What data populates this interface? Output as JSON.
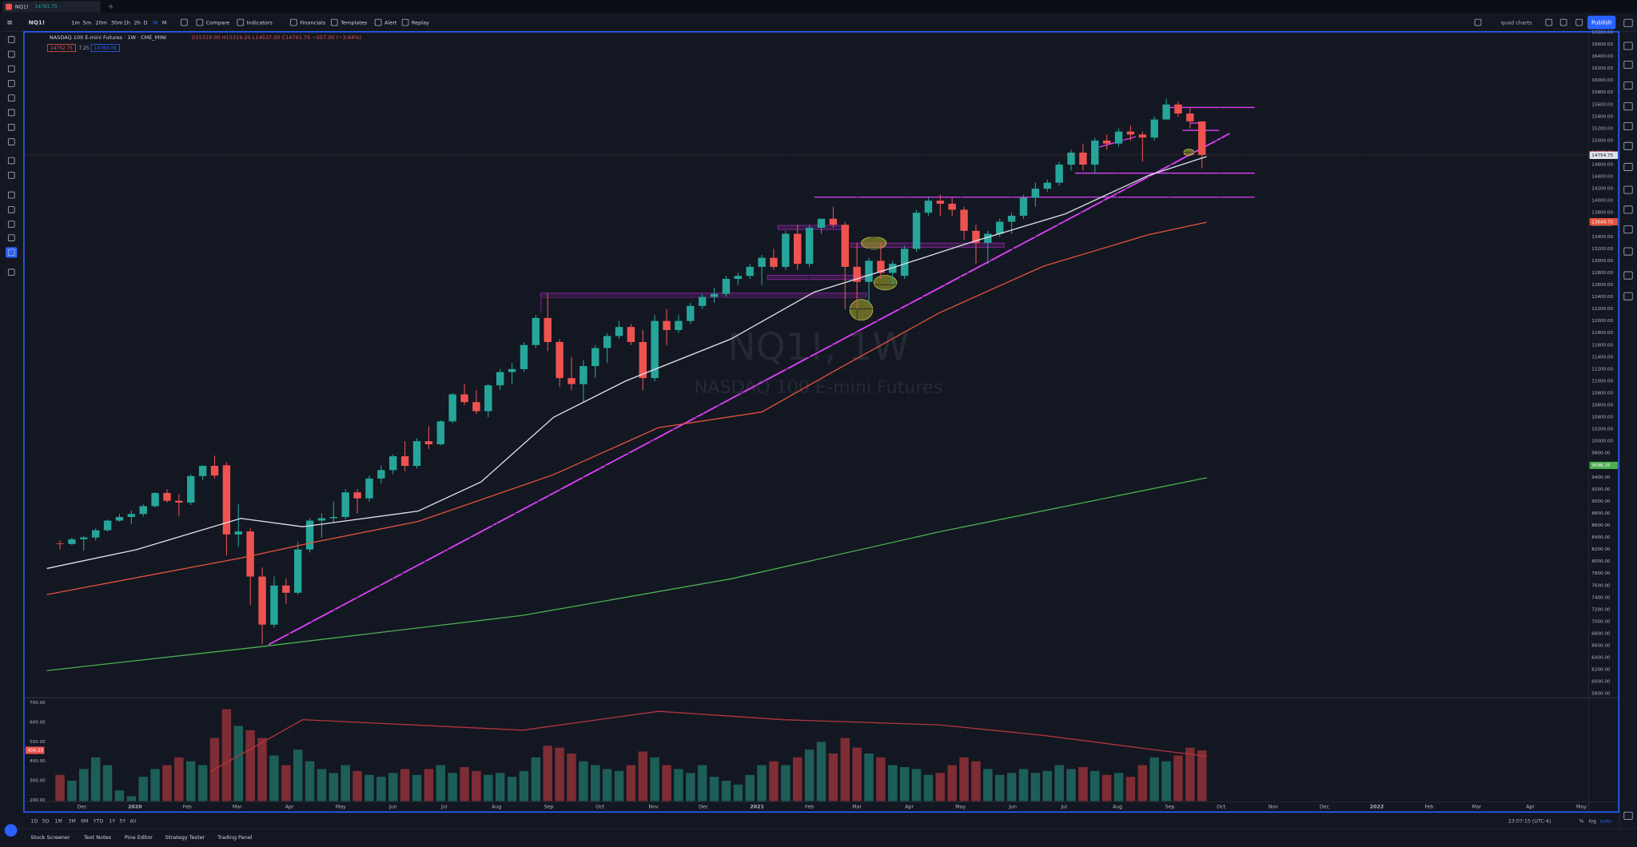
{
  "tab": {
    "symbol": "NQ1!",
    "price": "14761.75"
  },
  "toolbar": {
    "symbol": "NQ1!",
    "intervals": [
      "1m",
      "5m",
      "20m",
      "30m",
      "1h",
      "2h",
      "D",
      "W",
      "M"
    ],
    "active_interval": 7,
    "buttons": [
      "Compare",
      "Indicators",
      "Financials",
      "Templates",
      "Alert",
      "Replay"
    ],
    "layout": "quad charts",
    "publish": "Publish"
  },
  "chart": {
    "type": "candlestick",
    "legend": {
      "title": "NASDAQ 100 E-mini Futures · 1W · CME_MINI",
      "ohlc": "O15319.00 H15319.25 L14537.00 C14761.75 −557.00 (−3.64%)",
      "bid": "14752.75",
      "spread": "7.25",
      "ask": "14760.00"
    },
    "watermark": [
      "NQ1!, 1W",
      "NASDAQ 100 E-mini Futures"
    ],
    "up_color": "#26a69a",
    "down_color": "#ef5350",
    "candles": [
      [
        8300,
        8350,
        8200,
        8290
      ],
      [
        8290,
        8400,
        8270,
        8370
      ],
      [
        8370,
        8420,
        8180,
        8400
      ],
      [
        8400,
        8550,
        8350,
        8520
      ],
      [
        8520,
        8700,
        8500,
        8680
      ],
      [
        8680,
        8790,
        8660,
        8740
      ],
      [
        8740,
        8850,
        8620,
        8790
      ],
      [
        8790,
        8950,
        8750,
        8920
      ],
      [
        8920,
        9150,
        8900,
        9140
      ],
      [
        9140,
        9200,
        8980,
        9010
      ],
      [
        9010,
        9120,
        8750,
        8980
      ],
      [
        8980,
        9450,
        8940,
        9420
      ],
      [
        9420,
        9600,
        9350,
        9590
      ],
      [
        9590,
        9760,
        9380,
        9430
      ],
      [
        9600,
        9650,
        8100,
        8450
      ],
      [
        8450,
        8950,
        8250,
        8500
      ],
      [
        8500,
        8550,
        7280,
        7750
      ],
      [
        7750,
        7900,
        6630,
        6950
      ],
      [
        6950,
        7750,
        6900,
        7600
      ],
      [
        7600,
        7720,
        7300,
        7480
      ],
      [
        7480,
        8330,
        7450,
        8200
      ],
      [
        8200,
        8720,
        8150,
        8680
      ],
      [
        8680,
        8800,
        8400,
        8720
      ],
      [
        8720,
        9000,
        8650,
        8740
      ],
      [
        8740,
        9200,
        8700,
        9150
      ],
      [
        9150,
        9200,
        8800,
        9050
      ],
      [
        9050,
        9430,
        9000,
        9380
      ],
      [
        9380,
        9600,
        9300,
        9520
      ],
      [
        9520,
        9780,
        9450,
        9750
      ],
      [
        9750,
        10000,
        9500,
        9590
      ],
      [
        9590,
        10050,
        9550,
        10000
      ],
      [
        10000,
        10250,
        9870,
        9950
      ],
      [
        9950,
        10350,
        9930,
        10330
      ],
      [
        10330,
        10800,
        10300,
        10780
      ],
      [
        10780,
        10950,
        10600,
        10650
      ],
      [
        10650,
        10850,
        10450,
        10500
      ],
      [
        10500,
        10950,
        10400,
        10930
      ],
      [
        10930,
        11200,
        10850,
        11150
      ],
      [
        11150,
        11300,
        10950,
        11200
      ],
      [
        11200,
        11650,
        11150,
        11600
      ],
      [
        11600,
        12100,
        11550,
        12050
      ],
      [
        12050,
        12470,
        11500,
        11650
      ],
      [
        11650,
        11700,
        10900,
        11050
      ],
      [
        11050,
        11400,
        10850,
        10950
      ],
      [
        10950,
        11350,
        10650,
        11250
      ],
      [
        11250,
        11600,
        11050,
        11550
      ],
      [
        11550,
        11800,
        11300,
        11750
      ],
      [
        11750,
        12000,
        11700,
        11900
      ],
      [
        11900,
        11950,
        11600,
        11650
      ],
      [
        11650,
        11850,
        10850,
        11050
      ],
      [
        11050,
        12100,
        11000,
        12000
      ],
      [
        12000,
        12200,
        11600,
        11850
      ],
      [
        11850,
        12100,
        11800,
        12000
      ],
      [
        12000,
        12300,
        11950,
        12250
      ],
      [
        12250,
        12450,
        12200,
        12400
      ],
      [
        12400,
        12550,
        12300,
        12450
      ],
      [
        12450,
        12750,
        12400,
        12700
      ],
      [
        12700,
        12800,
        12600,
        12750
      ],
      [
        12750,
        12950,
        12700,
        12900
      ],
      [
        12900,
        13100,
        12600,
        13050
      ],
      [
        13050,
        13200,
        12850,
        12900
      ],
      [
        12900,
        13500,
        12850,
        13450
      ],
      [
        13450,
        13600,
        12850,
        12950
      ],
      [
        12950,
        13600,
        12900,
        13550
      ],
      [
        13550,
        13700,
        13450,
        13700
      ],
      [
        13700,
        13900,
        13550,
        13600
      ],
      [
        13600,
        13650,
        12200,
        12900
      ],
      [
        12900,
        13300,
        12200,
        12650
      ],
      [
        12650,
        13050,
        12300,
        13000
      ],
      [
        13000,
        13300,
        12700,
        12800
      ],
      [
        12800,
        13000,
        12600,
        12950
      ],
      [
        12750,
        13250,
        12700,
        13200
      ],
      [
        13200,
        13850,
        13150,
        13800
      ],
      [
        13800,
        14050,
        13750,
        14000
      ],
      [
        14000,
        14100,
        13750,
        13950
      ],
      [
        13950,
        14050,
        13750,
        13850
      ],
      [
        13850,
        13900,
        13350,
        13500
      ],
      [
        13500,
        13600,
        12950,
        13300
      ],
      [
        13300,
        13500,
        12950,
        13450
      ],
      [
        13450,
        13700,
        13400,
        13650
      ],
      [
        13650,
        13800,
        13450,
        13750
      ],
      [
        13750,
        14100,
        13700,
        14050
      ],
      [
        14050,
        14300,
        13900,
        14200
      ],
      [
        14200,
        14350,
        14150,
        14300
      ],
      [
        14300,
        14650,
        14250,
        14600
      ],
      [
        14600,
        14850,
        14500,
        14800
      ],
      [
        14800,
        14950,
        14500,
        14600
      ],
      [
        14600,
        15050,
        14450,
        15000
      ],
      [
        15000,
        15100,
        14850,
        14950
      ],
      [
        14950,
        15200,
        14900,
        15150
      ],
      [
        15150,
        15250,
        15000,
        15100
      ],
      [
        15100,
        15150,
        14650,
        15050
      ],
      [
        15050,
        15400,
        15000,
        15350
      ],
      [
        15350,
        15700,
        15350,
        15600
      ],
      [
        15600,
        15650,
        15400,
        15450
      ],
      [
        15450,
        15550,
        15200,
        15319
      ],
      [
        15319,
        15319.25,
        14537,
        14761.75
      ]
    ],
    "xlim": [
      -2.9,
      128.5
    ],
    "xticks": [
      {
        "value": 1.86,
        "label": "Dec"
      },
      {
        "value": 6.3,
        "label": "2020"
      },
      {
        "value": 10.7,
        "label": "Feb"
      },
      {
        "value": 14.9,
        "label": "Mar"
      },
      {
        "value": 19.3,
        "label": "Apr"
      },
      {
        "value": 23.6,
        "label": "May"
      },
      {
        "value": 28.0,
        "label": "Jun"
      },
      {
        "value": 32.3,
        "label": "Jul"
      },
      {
        "value": 36.7,
        "label": "Aug"
      },
      {
        "value": 41.1,
        "label": "Sep"
      },
      {
        "value": 45.4,
        "label": "Oct"
      },
      {
        "value": 49.9,
        "label": "Nov"
      },
      {
        "value": 54.1,
        "label": "Dec"
      },
      {
        "value": 58.6,
        "label": "2021"
      },
      {
        "value": 63.0,
        "label": "Feb"
      },
      {
        "value": 67.0,
        "label": "Mar"
      },
      {
        "value": 71.4,
        "label": "Apr"
      },
      {
        "value": 75.7,
        "label": "May"
      },
      {
        "value": 80.1,
        "label": "Jun"
      },
      {
        "value": 84.4,
        "label": "Jul"
      },
      {
        "value": 88.9,
        "label": "Aug"
      },
      {
        "value": 93.3,
        "label": "Sep"
      },
      {
        "value": 97.6,
        "label": "Oct"
      },
      {
        "value": 102.0,
        "label": "Nov"
      },
      {
        "value": 106.3,
        "label": "Dec"
      },
      {
        "value": 110.7,
        "label": "2022"
      },
      {
        "value": 115.1,
        "label": "Feb"
      },
      {
        "value": 119.1,
        "label": "Mar"
      },
      {
        "value": 123.6,
        "label": "Apr"
      },
      {
        "value": 127.9,
        "label": "May"
      }
    ],
    "ylim": [
      5750,
      16800
    ],
    "yticks": [
      {
        "value": 5800,
        "label": "5800.00"
      },
      {
        "value": 6000,
        "label": "6000.00"
      },
      {
        "value": 6200,
        "label": "6200.00"
      },
      {
        "value": 6400,
        "label": "6400.00"
      },
      {
        "value": 6600,
        "label": "6600.00"
      },
      {
        "value": 6800,
        "label": "6800.00"
      },
      {
        "value": 7000,
        "label": "7000.00"
      },
      {
        "value": 7200,
        "label": "7200.00"
      },
      {
        "value": 7400,
        "label": "7400.00"
      },
      {
        "value": 7600,
        "label": "7600.00"
      },
      {
        "value": 7800,
        "label": "7800.00"
      },
      {
        "value": 8000,
        "label": "8000.00"
      },
      {
        "value": 8200,
        "label": "8200.00"
      },
      {
        "value": 8400,
        "label": "8400.00"
      },
      {
        "value": 8600,
        "label": "8600.00"
      },
      {
        "value": 8800,
        "label": "8800.00"
      },
      {
        "value": 9000,
        "label": "9000.00"
      },
      {
        "value": 9200,
        "label": "9200.00"
      },
      {
        "value": 9400,
        "label": "9400.00"
      },
      {
        "value": 9600,
        "label": "9600.00"
      },
      {
        "value": 9800,
        "label": "9800.00"
      },
      {
        "value": 10000,
        "label": "10000.00"
      },
      {
        "value": 10200,
        "label": "10200.00"
      },
      {
        "value": 10400,
        "label": "10400.00"
      },
      {
        "value": 10600,
        "label": "10600.00"
      },
      {
        "value": 10800,
        "label": "10800.00"
      },
      {
        "value": 11000,
        "label": "11000.00"
      },
      {
        "value": 11200,
        "label": "11200.00"
      },
      {
        "value": 11400,
        "label": "11400.00"
      },
      {
        "value": 11600,
        "label": "11600.00"
      },
      {
        "value": 11800,
        "label": "11800.00"
      },
      {
        "value": 12000,
        "label": "12000.00"
      },
      {
        "value": 12200,
        "label": "12200.00"
      },
      {
        "value": 12400,
        "label": "12400.00"
      },
      {
        "value": 12600,
        "label": "12600.00"
      },
      {
        "value": 12800,
        "label": "12800.00"
      },
      {
        "value": 13000,
        "label": "13000.00"
      },
      {
        "value": 13200,
        "label": "13200.00"
      },
      {
        "value": 13400,
        "label": "13400.00"
      },
      {
        "value": 13600,
        "label": "13600.00"
      },
      {
        "value": 13800,
        "label": "13800.00"
      },
      {
        "value": 14000,
        "label": "14000.00"
      },
      {
        "value": 14200,
        "label": "14200.00"
      },
      {
        "value": 14400,
        "label": "14400.00"
      },
      {
        "value": 14600,
        "label": "14600.00"
      },
      {
        "value": 14800,
        "label": "14800.00"
      },
      {
        "value": 15000,
        "label": "15000.00"
      },
      {
        "value": 15200,
        "label": "15200.00"
      },
      {
        "value": 15400,
        "label": "15400.00"
      },
      {
        "value": 15600,
        "label": "15600.00"
      },
      {
        "value": 15800,
        "label": "15800.00"
      },
      {
        "value": 16000,
        "label": "16000.00"
      },
      {
        "value": 16200,
        "label": "16200.00"
      },
      {
        "value": 16400,
        "label": "16400.00"
      },
      {
        "value": 16600,
        "label": "16600.00"
      },
      {
        "value": 16800,
        "label": "16800.00"
      }
    ],
    "moving_averages": [
      {
        "color": "#e0e3eb",
        "x": [
          -1.1,
          6.4,
          15.2,
          20.4,
          30.1,
          35.4,
          41.5,
          47.6,
          56.4,
          63.4,
          69.6,
          76.6,
          84.5,
          91.5,
          96.4
        ],
        "values": [
          7884,
          8196,
          8717,
          8578,
          8838,
          9324,
          10399,
          11006,
          11700,
          12480,
          12860,
          13310,
          13780,
          14420,
          14735
        ]
      },
      {
        "color": "#e5533d",
        "x": [
          -1.1,
          15.2,
          21.3,
          30.1,
          41.5,
          50.3,
          59.0,
          65.2,
          73.9,
          82.7,
          91.5,
          96.4
        ],
        "values": [
          7450,
          8058,
          8318,
          8665,
          9445,
          10225,
          10486,
          11180,
          12133,
          12913,
          13434,
          13642
        ]
      },
      {
        "color": "#4caf50",
        "x": [
          -1.1,
          16.9,
          38.9,
          56.4,
          73.9,
          96.4
        ],
        "values": [
          6185,
          6583,
          7104,
          7711,
          8492,
          9393
        ]
      }
    ],
    "price_tags": [
      {
        "value": 14761.75,
        "color": "#ef5350"
      },
      {
        "value": 14754.75,
        "color": "#e0e3eb"
      },
      {
        "value": 13649.75,
        "color": "#e5533d"
      },
      {
        "value": 9598.25,
        "color": "#4caf50"
      }
    ],
    "volume": {
      "values": [
        330,
        300,
        360,
        420,
        380,
        250,
        220,
        320,
        360,
        380,
        420,
        400,
        380,
        520,
        668,
        582,
        560,
        520,
        430,
        380,
        460,
        400,
        360,
        340,
        380,
        350,
        330,
        320,
        340,
        360,
        330,
        360,
        380,
        340,
        370,
        350,
        330,
        340,
        320,
        350,
        420,
        480,
        470,
        440,
        400,
        380,
        360,
        350,
        380,
        450,
        420,
        380,
        360,
        340,
        380,
        320,
        300,
        280,
        330,
        380,
        400,
        380,
        420,
        460,
        500,
        440,
        520,
        470,
        440,
        420,
        380,
        370,
        360,
        330,
        340,
        380,
        420,
        400,
        360,
        330,
        340,
        360,
        340,
        350,
        380,
        360,
        370,
        350,
        330,
        340,
        320,
        380,
        420,
        400,
        430,
        470,
        456.33
      ],
      "ylim": [
        195,
        721
      ],
      "yticks": [
        {
          "value": 700,
          "label": "700.00"
        },
        {
          "value": 600,
          "label": "600.00"
        },
        {
          "value": 500,
          "label": "500.00"
        },
        {
          "value": 400,
          "label": "400.00"
        },
        {
          "value": 300,
          "label": "300.00"
        },
        {
          "value": 200,
          "label": "200.00"
        }
      ],
      "last_tag": 456.33,
      "ma": {
        "color": "#b3363f",
        "x": [
          12.6,
          20.4,
          38.9,
          50.3,
          60.8,
          74.0,
          82.7,
          91.5,
          96.4
        ],
        "values": [
          345,
          614,
          560,
          657,
          614,
          587,
          533,
          463,
          426
        ]
      }
    }
  },
  "range_bar": {
    "ranges": [
      "1D",
      "5D",
      "1M",
      "3M",
      "6M",
      "YTD",
      "1Y",
      "5Y",
      "All"
    ],
    "clock": "23:07:15 (UTC-4)",
    "options": [
      "%",
      "log",
      "auto"
    ]
  },
  "bottom_tabs": [
    "Stock Screener",
    "Text Notes",
    "Pine Editor",
    "Strategy Tester",
    "Trading Panel"
  ]
}
